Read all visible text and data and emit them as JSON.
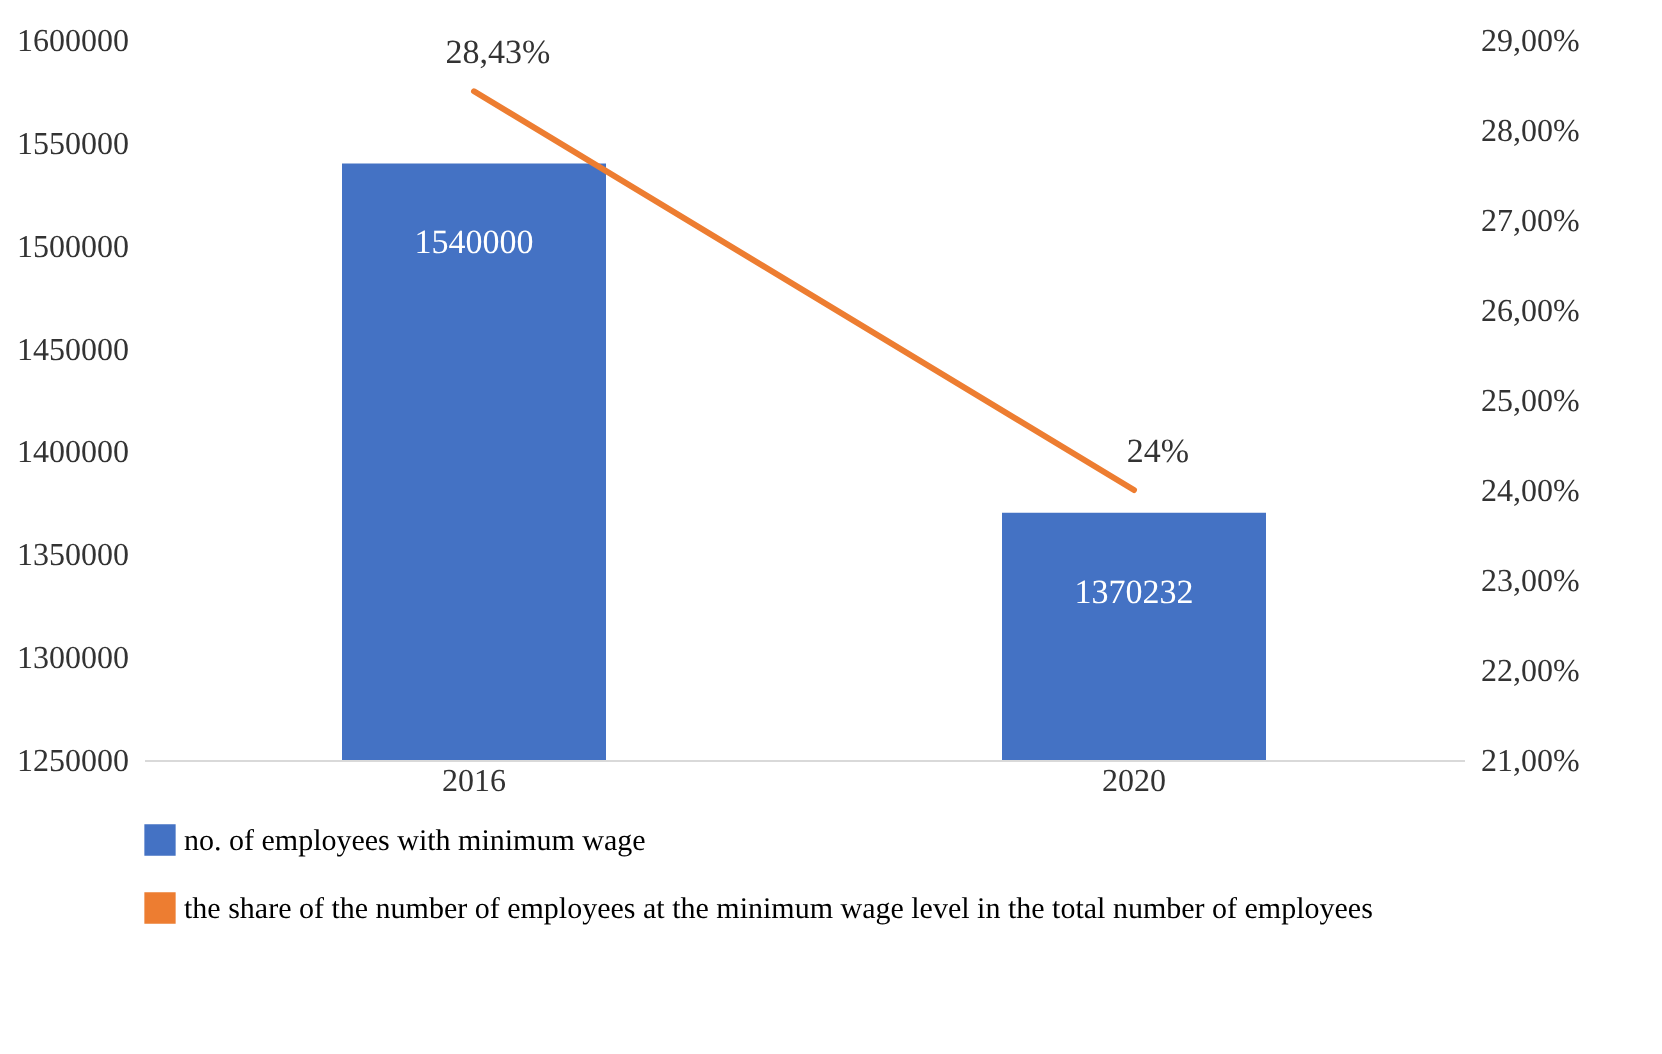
{
  "chart_data": {
    "type": "bar",
    "categories": [
      "2016",
      "2020"
    ],
    "series": [
      {
        "name": "no. of employees with minimum wage",
        "color": "#4472c4",
        "values": [
          1540000,
          1370232
        ],
        "value_labels": [
          "1540000",
          "1370232"
        ]
      },
      {
        "name": "the share of the number of employees at the minimum wage level in the total number of employees",
        "type": "line",
        "axis": "y2",
        "color": "#ed7d31",
        "values": [
          28.43,
          24
        ],
        "value_labels": [
          "28,43%",
          "24%"
        ]
      }
    ],
    "ylim": [
      1250000,
      1600000
    ],
    "yticks": [
      1250000,
      1300000,
      1350000,
      1400000,
      1450000,
      1500000,
      1550000,
      1600000
    ],
    "y2lim": [
      21,
      29
    ],
    "y2ticks": [
      {
        "value": 21,
        "label": "21,00%"
      },
      {
        "value": 22,
        "label": "22,00%"
      },
      {
        "value": 23,
        "label": "23,00%"
      },
      {
        "value": 24,
        "label": "24,00%"
      },
      {
        "value": 25,
        "label": "25,00%"
      },
      {
        "value": 26,
        "label": "26,00%"
      },
      {
        "value": 27,
        "label": "27,00%"
      },
      {
        "value": 28,
        "label": "28,00%"
      },
      {
        "value": 29,
        "label": "29,00%"
      }
    ],
    "legend": "bottom"
  }
}
